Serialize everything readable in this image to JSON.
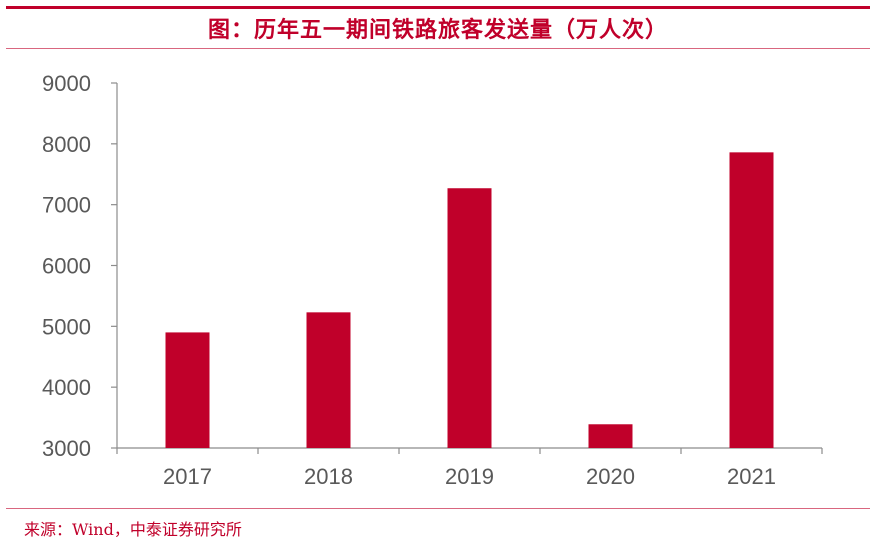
{
  "title": "图：历年五一期间铁路旅客发送量（万人次）",
  "source": "来源：Wind，中泰证券研究所",
  "colors": {
    "accent": "#c0002a",
    "bar": "#c0002a",
    "axis": "#8c8c8c",
    "text": "#595959"
  },
  "chart_data": {
    "type": "bar",
    "title": "图：历年五一期间铁路旅客发送量（万人次）",
    "xlabel": "",
    "ylabel": "",
    "categories": [
      "2017",
      "2018",
      "2019",
      "2020",
      "2021"
    ],
    "values": [
      4900,
      5230,
      7270,
      3390,
      7860
    ],
    "ylim": [
      3000,
      9000
    ],
    "yticks": [
      3000,
      4000,
      5000,
      6000,
      7000,
      8000,
      9000
    ],
    "grid": false,
    "legend": "none"
  }
}
